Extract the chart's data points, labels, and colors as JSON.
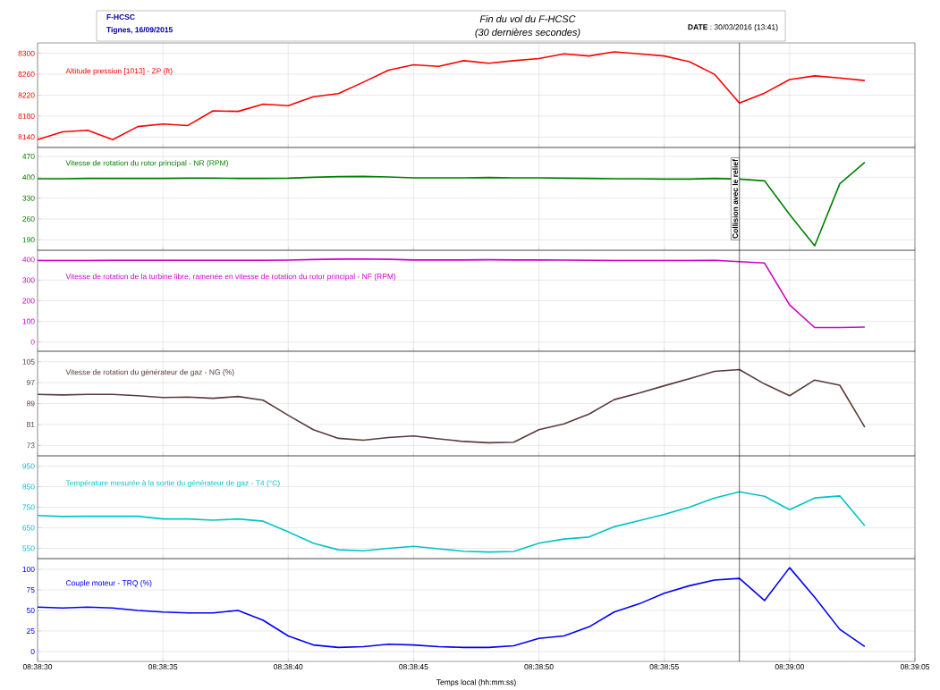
{
  "chart_data": [
    {
      "type": "line",
      "title": "Fin du vol du F-HCSC",
      "subtitle": "(30 dernières secondes)",
      "annotations": [
        "F-HCSC",
        "Tignes, 16/09/2015",
        "**DATE** : 30/03/2016 (13:41)"
      ],
      "x": [
        8.641667,
        8.641944,
        8.642222,
        8.6425,
        8.642778,
        8.643056,
        8.643333,
        8.643611,
        8.643889,
        8.644167,
        8.644444,
        8.644722,
        8.645,
        8.645278,
        8.645556,
        8.645833,
        8.646111,
        8.646389,
        8.646667,
        8.646944,
        8.647222,
        8.6475,
        8.647778,
        8.648056,
        8.648333,
        8.648611,
        8.648889,
        8.649167,
        8.649444,
        8.649722,
        8.65,
        8.650278,
        8.650556,
        8.650833
      ],
      "series": [
        {
          "name": "Altitude pression [1013] - ZP (ft)",
          "color": "#ff0000",
          "values": [
            8135,
            8150,
            8153,
            8135,
            8160,
            8165,
            8162,
            8190,
            8189,
            8203,
            8200,
            8217,
            8223,
            8245,
            8268,
            8278,
            8275,
            8286,
            8281,
            8286,
            8290,
            8299,
            8295,
            8303,
            8299,
            8295,
            8284,
            8260,
            8205,
            8224,
            8250,
            8257,
            8253,
            8248
          ]
        }
      ],
      "xlim": [
        8.641667,
        8.651389
      ],
      "ylim": [
        8120,
        8320
      ],
      "xticks": [
        {
          "value": 8.641667,
          "label": null
        },
        {
          "value": 8.643056,
          "label": null
        },
        {
          "value": 8.644444,
          "label": null
        },
        {
          "value": 8.645833,
          "label": null
        },
        {
          "value": 8.647222,
          "label": null
        },
        {
          "value": 8.648611,
          "label": null
        },
        {
          "value": 8.65,
          "label": null
        },
        {
          "value": 8.651389,
          "label": null
        }
      ],
      "yticks": [
        8140,
        8180,
        8220,
        8260,
        8300
      ],
      "tick_labels": "y",
      "grid": true,
      "ref_lines": [
        {
          "axis": "x",
          "value": 8.649444
        }
      ]
    },
    {
      "type": "line",
      "x": [
        8.641667,
        8.641944,
        8.642222,
        8.6425,
        8.642778,
        8.643056,
        8.643333,
        8.643611,
        8.643889,
        8.644167,
        8.644444,
        8.644722,
        8.645,
        8.645278,
        8.645556,
        8.645833,
        8.646111,
        8.646389,
        8.646667,
        8.646944,
        8.647222,
        8.6475,
        8.647778,
        8.648056,
        8.648333,
        8.648611,
        8.648889,
        8.649167,
        8.649444,
        8.649722,
        8.65,
        8.650278,
        8.650556,
        8.650833
      ],
      "series": [
        {
          "name": "Vitesse de rotation du rotor principal - NR (RPM)",
          "color": "#008000",
          "values": [
            395,
            395,
            396,
            396,
            396,
            396,
            397,
            397,
            396,
            396,
            397,
            400,
            402,
            403,
            401,
            398,
            398,
            398,
            399,
            398,
            398,
            397,
            396,
            395,
            395,
            394,
            394,
            396,
            394,
            388,
            275,
            170,
            378,
            450
          ]
        }
      ],
      "xlim": [
        8.641667,
        8.651389
      ],
      "ylim": [
        155,
        500
      ],
      "xticks": [
        {
          "value": 8.641667,
          "label": null
        },
        {
          "value": 8.643056,
          "label": null
        },
        {
          "value": 8.644444,
          "label": null
        },
        {
          "value": 8.645833,
          "label": null
        },
        {
          "value": 8.647222,
          "label": null
        },
        {
          "value": 8.648611,
          "label": null
        },
        {
          "value": 8.65,
          "label": null
        },
        {
          "value": 8.651389,
          "label": null
        }
      ],
      "yticks": [
        190,
        260,
        330,
        400,
        470
      ],
      "tick_labels": "y",
      "grid": true,
      "ref_lines": [
        {
          "axis": "x",
          "value": 8.649444,
          "label": "Collision avec le relief"
        }
      ]
    },
    {
      "type": "line",
      "x": [
        8.641667,
        8.641944,
        8.642222,
        8.6425,
        8.642778,
        8.643056,
        8.643333,
        8.643611,
        8.643889,
        8.644167,
        8.644444,
        8.644722,
        8.645,
        8.645278,
        8.645556,
        8.645833,
        8.646111,
        8.646389,
        8.646667,
        8.646944,
        8.647222,
        8.6475,
        8.647778,
        8.648056,
        8.648333,
        8.648611,
        8.648889,
        8.649167,
        8.649444,
        8.649722,
        8.65,
        8.650278,
        8.650556,
        8.650833
      ],
      "series": [
        {
          "name": "Vitesse de rotation de la turbine libre, ramenée en vitesse de rotation du rotor principal - NF (RPM)",
          "color": "#cc00cc",
          "values": [
            395,
            395,
            395,
            396,
            396,
            396,
            396,
            396,
            396,
            396,
            397,
            400,
            402,
            403,
            401,
            398,
            398,
            398,
            399,
            398,
            398,
            397,
            396,
            395,
            395,
            395,
            395,
            396,
            390,
            383,
            180,
            70,
            70,
            72
          ]
        }
      ],
      "xlim": [
        8.641667,
        8.651389
      ],
      "ylim": [
        -45,
        445
      ],
      "xticks": [
        {
          "value": 8.641667,
          "label": null
        },
        {
          "value": 8.643056,
          "label": null
        },
        {
          "value": 8.644444,
          "label": null
        },
        {
          "value": 8.645833,
          "label": null
        },
        {
          "value": 8.647222,
          "label": null
        },
        {
          "value": 8.648611,
          "label": null
        },
        {
          "value": 8.65,
          "label": null
        },
        {
          "value": 8.651389,
          "label": null
        }
      ],
      "yticks": [
        0,
        100,
        200,
        300,
        400
      ],
      "tick_labels": "y",
      "grid": true,
      "ref_lines": [
        {
          "axis": "x",
          "value": 8.649444
        }
      ]
    },
    {
      "type": "line",
      "x": [
        8.641667,
        8.641944,
        8.642222,
        8.6425,
        8.642778,
        8.643056,
        8.643333,
        8.643611,
        8.643889,
        8.644167,
        8.644444,
        8.644722,
        8.645,
        8.645278,
        8.645556,
        8.645833,
        8.646111,
        8.646389,
        8.646667,
        8.646944,
        8.647222,
        8.6475,
        8.647778,
        8.648056,
        8.648333,
        8.648611,
        8.648889,
        8.649167,
        8.649444,
        8.649722,
        8.65,
        8.650278,
        8.650556,
        8.650833
      ],
      "series": [
        {
          "name": "Vitesse de rotation du générateur de gaz - NG (%)",
          "color": "#5a3a3a",
          "values": [
            92.5,
            92.3,
            92.5,
            92.5,
            92,
            91.3,
            91.5,
            91,
            91.7,
            90.3,
            84.5,
            79,
            75.7,
            75,
            76,
            76.6,
            75.5,
            74.5,
            74,
            74.2,
            79,
            81.2,
            85,
            90.5,
            93,
            95.8,
            98.5,
            101.3,
            102,
            96.5,
            92,
            98,
            96,
            80
          ]
        }
      ],
      "xlim": [
        8.641667,
        8.651389
      ],
      "ylim": [
        69,
        109
      ],
      "xticks": [
        {
          "value": 8.641667,
          "label": null
        },
        {
          "value": 8.643056,
          "label": null
        },
        {
          "value": 8.644444,
          "label": null
        },
        {
          "value": 8.645833,
          "label": null
        },
        {
          "value": 8.647222,
          "label": null
        },
        {
          "value": 8.648611,
          "label": null
        },
        {
          "value": 8.65,
          "label": null
        },
        {
          "value": 8.651389,
          "label": null
        }
      ],
      "yticks": [
        73,
        81,
        89,
        97,
        105
      ],
      "tick_labels": "y",
      "grid": true,
      "ref_lines": [
        {
          "axis": "x",
          "value": 8.649444
        }
      ]
    },
    {
      "type": "line",
      "x": [
        8.641667,
        8.641944,
        8.642222,
        8.6425,
        8.642778,
        8.643056,
        8.643333,
        8.643611,
        8.643889,
        8.644167,
        8.644444,
        8.644722,
        8.645,
        8.645278,
        8.645556,
        8.645833,
        8.646111,
        8.646389,
        8.646667,
        8.646944,
        8.647222,
        8.6475,
        8.647778,
        8.648056,
        8.648333,
        8.648611,
        8.648889,
        8.649167,
        8.649444,
        8.649722,
        8.65,
        8.650278,
        8.650556,
        8.650833
      ],
      "series": [
        {
          "name": "Température mesurée à la sortie du générateur de gaz - T4 (°C)",
          "color": "#00c4c4",
          "values": [
            710,
            705,
            706,
            706,
            706,
            693,
            693,
            687,
            693,
            682,
            630,
            575,
            543,
            538,
            550,
            560,
            548,
            536,
            532,
            535,
            575,
            595,
            605,
            655,
            685,
            715,
            750,
            795,
            825,
            803,
            738,
            795,
            805,
            660
          ]
        }
      ],
      "xlim": [
        8.641667,
        8.651389
      ],
      "ylim": [
        500,
        1000
      ],
      "xticks": [
        {
          "value": 8.641667,
          "label": null
        },
        {
          "value": 8.643056,
          "label": null
        },
        {
          "value": 8.644444,
          "label": null
        },
        {
          "value": 8.645833,
          "label": null
        },
        {
          "value": 8.647222,
          "label": null
        },
        {
          "value": 8.648611,
          "label": null
        },
        {
          "value": 8.65,
          "label": null
        },
        {
          "value": 8.651389,
          "label": null
        }
      ],
      "yticks": [
        550,
        650,
        750,
        850,
        950
      ],
      "tick_labels": "y",
      "grid": true,
      "ref_lines": [
        {
          "axis": "x",
          "value": 8.649444
        }
      ]
    },
    {
      "type": "line",
      "xlabel": "Temps local (hh:mm:ss)",
      "x": [
        8.641667,
        8.641944,
        8.642222,
        8.6425,
        8.642778,
        8.643056,
        8.643333,
        8.643611,
        8.643889,
        8.644167,
        8.644444,
        8.644722,
        8.645,
        8.645278,
        8.645556,
        8.645833,
        8.646111,
        8.646389,
        8.646667,
        8.646944,
        8.647222,
        8.6475,
        8.647778,
        8.648056,
        8.648333,
        8.648611,
        8.648889,
        8.649167,
        8.649444,
        8.649722,
        8.65,
        8.650278,
        8.650556,
        8.650833
      ],
      "series": [
        {
          "name": "Couple moteur - TRQ (%)",
          "color": "#0000ff",
          "values": [
            54,
            53,
            54,
            53,
            50,
            48,
            47,
            47,
            50,
            38,
            19,
            8,
            5,
            6,
            9,
            8,
            6,
            5,
            5,
            7,
            16,
            19,
            30,
            48,
            58,
            71,
            80,
            87,
            89,
            62,
            102,
            66,
            27,
            6
          ]
        }
      ],
      "xlim": [
        8.641667,
        8.651389
      ],
      "ylim": [
        -12,
        113
      ],
      "xticks": [
        {
          "value": 8.641667,
          "label": "08:38:30"
        },
        {
          "value": 8.643056,
          "label": "08:38:35"
        },
        {
          "value": 8.644444,
          "label": "08:38:40"
        },
        {
          "value": 8.645833,
          "label": "08:38:45"
        },
        {
          "value": 8.647222,
          "label": "08:38:50"
        },
        {
          "value": 8.648611,
          "label": "08:38:55"
        },
        {
          "value": 8.65,
          "label": "08:39:00"
        },
        {
          "value": 8.651389,
          "label": "08:39:05"
        }
      ],
      "yticks": [
        0,
        25,
        50,
        75,
        100
      ],
      "grid": true,
      "ref_lines": [
        {
          "axis": "x",
          "value": 8.649444
        }
      ]
    }
  ]
}
